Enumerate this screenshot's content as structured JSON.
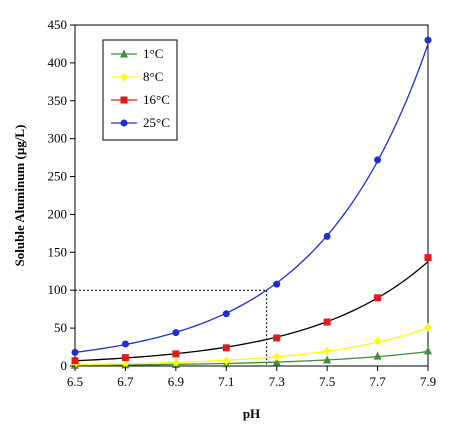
{
  "chart_data": {
    "type": "line",
    "title": "",
    "xlabel": "pH",
    "ylabel": "Soluble Aluminum (µg/L)",
    "xlim": [
      6.5,
      7.9
    ],
    "ylim": [
      0,
      450
    ],
    "x_ticks": [
      "6.5",
      "6.7",
      "6.9",
      "7.1",
      "7.3",
      "7.5",
      "7.7",
      "7.9"
    ],
    "y_ticks": [
      "0",
      "50",
      "100",
      "150",
      "200",
      "250",
      "300",
      "350",
      "400",
      "450"
    ],
    "grid": false,
    "legend_position": "top-left",
    "x": [
      6.5,
      6.7,
      6.9,
      7.1,
      7.3,
      7.5,
      7.7,
      7.9
    ],
    "series": [
      {
        "name": "1°C",
        "color": "#3f8f3f",
        "marker": "triangle",
        "line_color": "#3f8f3f",
        "values": [
          1,
          1.5,
          2,
          3,
          5,
          8,
          13,
          20
        ]
      },
      {
        "name": "8°C",
        "color": "#ffff00",
        "marker": "diamond",
        "line_color": "#ffff00",
        "values": [
          2,
          3,
          4,
          7,
          12,
          20,
          33,
          51
        ]
      },
      {
        "name": "16°C",
        "color": "#e31a1c",
        "marker": "square",
        "line_color": "#000000",
        "values": [
          7,
          11,
          16,
          24,
          37,
          58,
          90,
          143
        ]
      },
      {
        "name": "25°C",
        "color": "#1f2fd0",
        "marker": "circle",
        "line_color": "#1f2fd0",
        "values": [
          18,
          29,
          44,
          69,
          108,
          171,
          272,
          430
        ]
      }
    ],
    "reference_lines": {
      "y": 100,
      "x": 7.26
    }
  }
}
